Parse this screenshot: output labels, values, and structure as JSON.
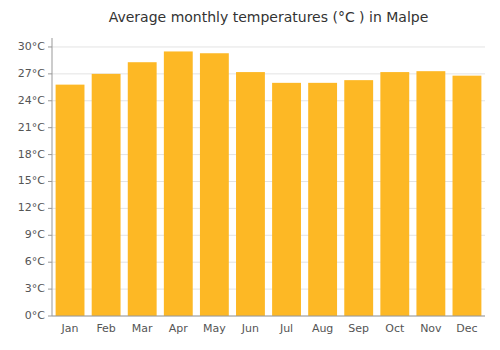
{
  "chart_data": {
    "type": "bar",
    "title": "Average monthly temperatures (°C ) in Malpe",
    "categories": [
      "Jan",
      "Feb",
      "Mar",
      "Apr",
      "May",
      "Jun",
      "Jul",
      "Aug",
      "Sep",
      "Oct",
      "Nov",
      "Dec"
    ],
    "values": [
      25.8,
      27.0,
      28.3,
      29.5,
      29.3,
      27.2,
      26.0,
      26.0,
      26.3,
      27.2,
      27.3,
      26.8
    ],
    "color": "#FDB825",
    "ylim": [
      0,
      31
    ],
    "yticks": [
      {
        "value": 0,
        "label": "0°C"
      },
      {
        "value": 3,
        "label": "3°C"
      },
      {
        "value": 6,
        "label": "6°C"
      },
      {
        "value": 9,
        "label": "9°C"
      },
      {
        "value": 12,
        "label": "12°C"
      },
      {
        "value": 15,
        "label": "15°C"
      },
      {
        "value": 18,
        "label": "18°C"
      },
      {
        "value": 21,
        "label": "21°C"
      },
      {
        "value": 24,
        "label": "24°C"
      },
      {
        "value": 27,
        "label": "27°C"
      },
      {
        "value": 30,
        "label": "30°C"
      }
    ],
    "grid": true
  }
}
